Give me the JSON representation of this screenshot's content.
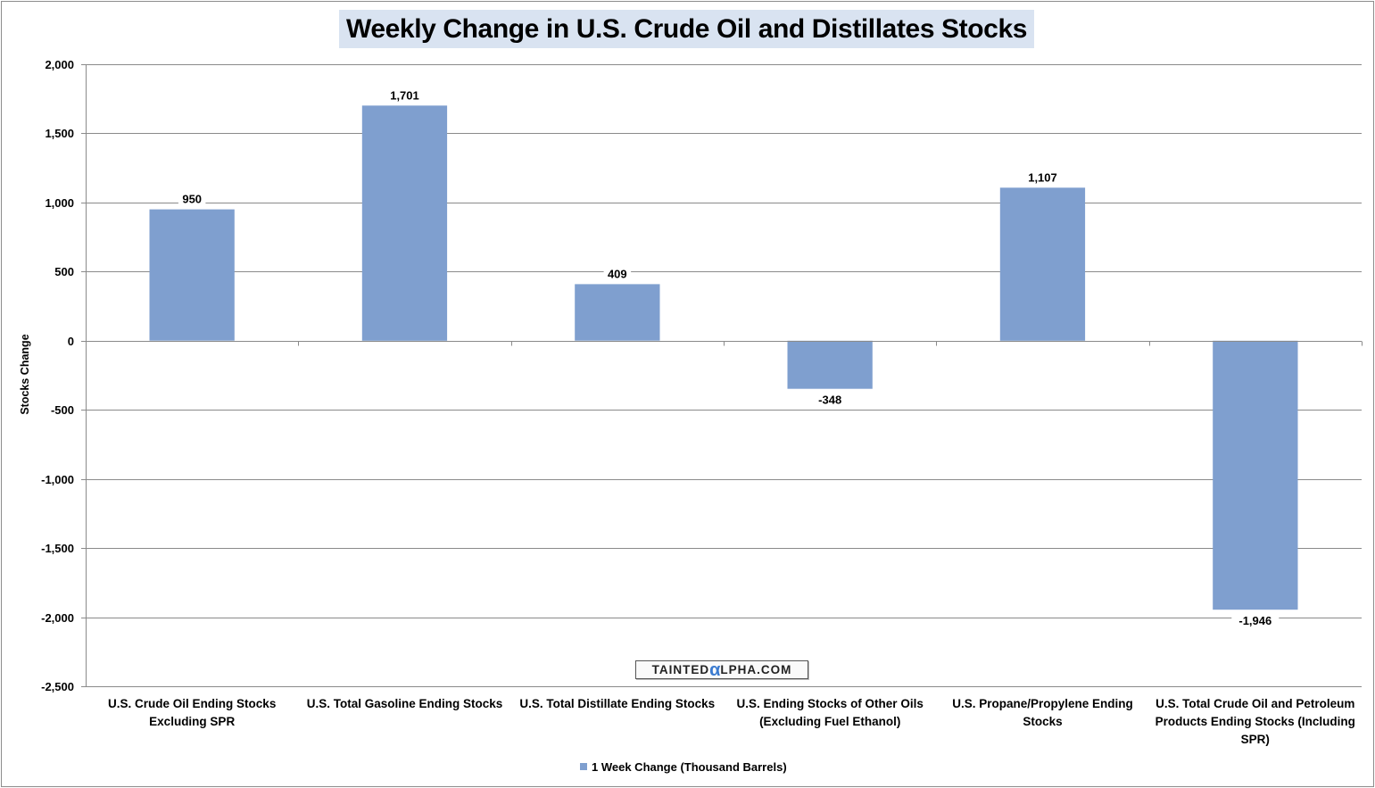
{
  "chart_data": {
    "type": "bar",
    "title": "Weekly Change in U.S. Crude Oil and Distillates Stocks",
    "ylabel": "Stocks Change",
    "xlabel": "",
    "ylim": [
      -2500,
      2000
    ],
    "ytick_step": 500,
    "ytick_labels": [
      "2,000",
      "1,500",
      "1,000",
      "500",
      "0",
      "-500",
      "-1,000",
      "-1,500",
      "-2,000",
      "-2,500"
    ],
    "grid": true,
    "legend_position": "bottom",
    "categories": [
      [
        "U.S. Crude Oil Ending Stocks",
        "Excluding SPR"
      ],
      [
        "U.S. Total Gasoline Ending Stocks"
      ],
      [
        "U.S. Total Distillate Ending Stocks"
      ],
      [
        "U.S. Ending Stocks of Other Oils",
        "(Excluding Fuel Ethanol)"
      ],
      [
        "U.S. Propane/Propylene Ending",
        "Stocks"
      ],
      [
        "U.S. Total Crude Oil and Petroleum",
        "Products Ending Stocks (Including",
        "SPR)"
      ]
    ],
    "series": [
      {
        "name": "1 Week Change (Thousand Barrels)",
        "values": [
          950,
          1701,
          409,
          -348,
          1107,
          -1946
        ],
        "data_labels": [
          "950",
          "1,701",
          "409",
          "-348",
          "1,107",
          "-1,946"
        ],
        "color": "#7f9fcf"
      }
    ]
  },
  "watermark": {
    "prefix": "TAINTED",
    "alpha": "α",
    "suffix": "LPHA.COM"
  }
}
